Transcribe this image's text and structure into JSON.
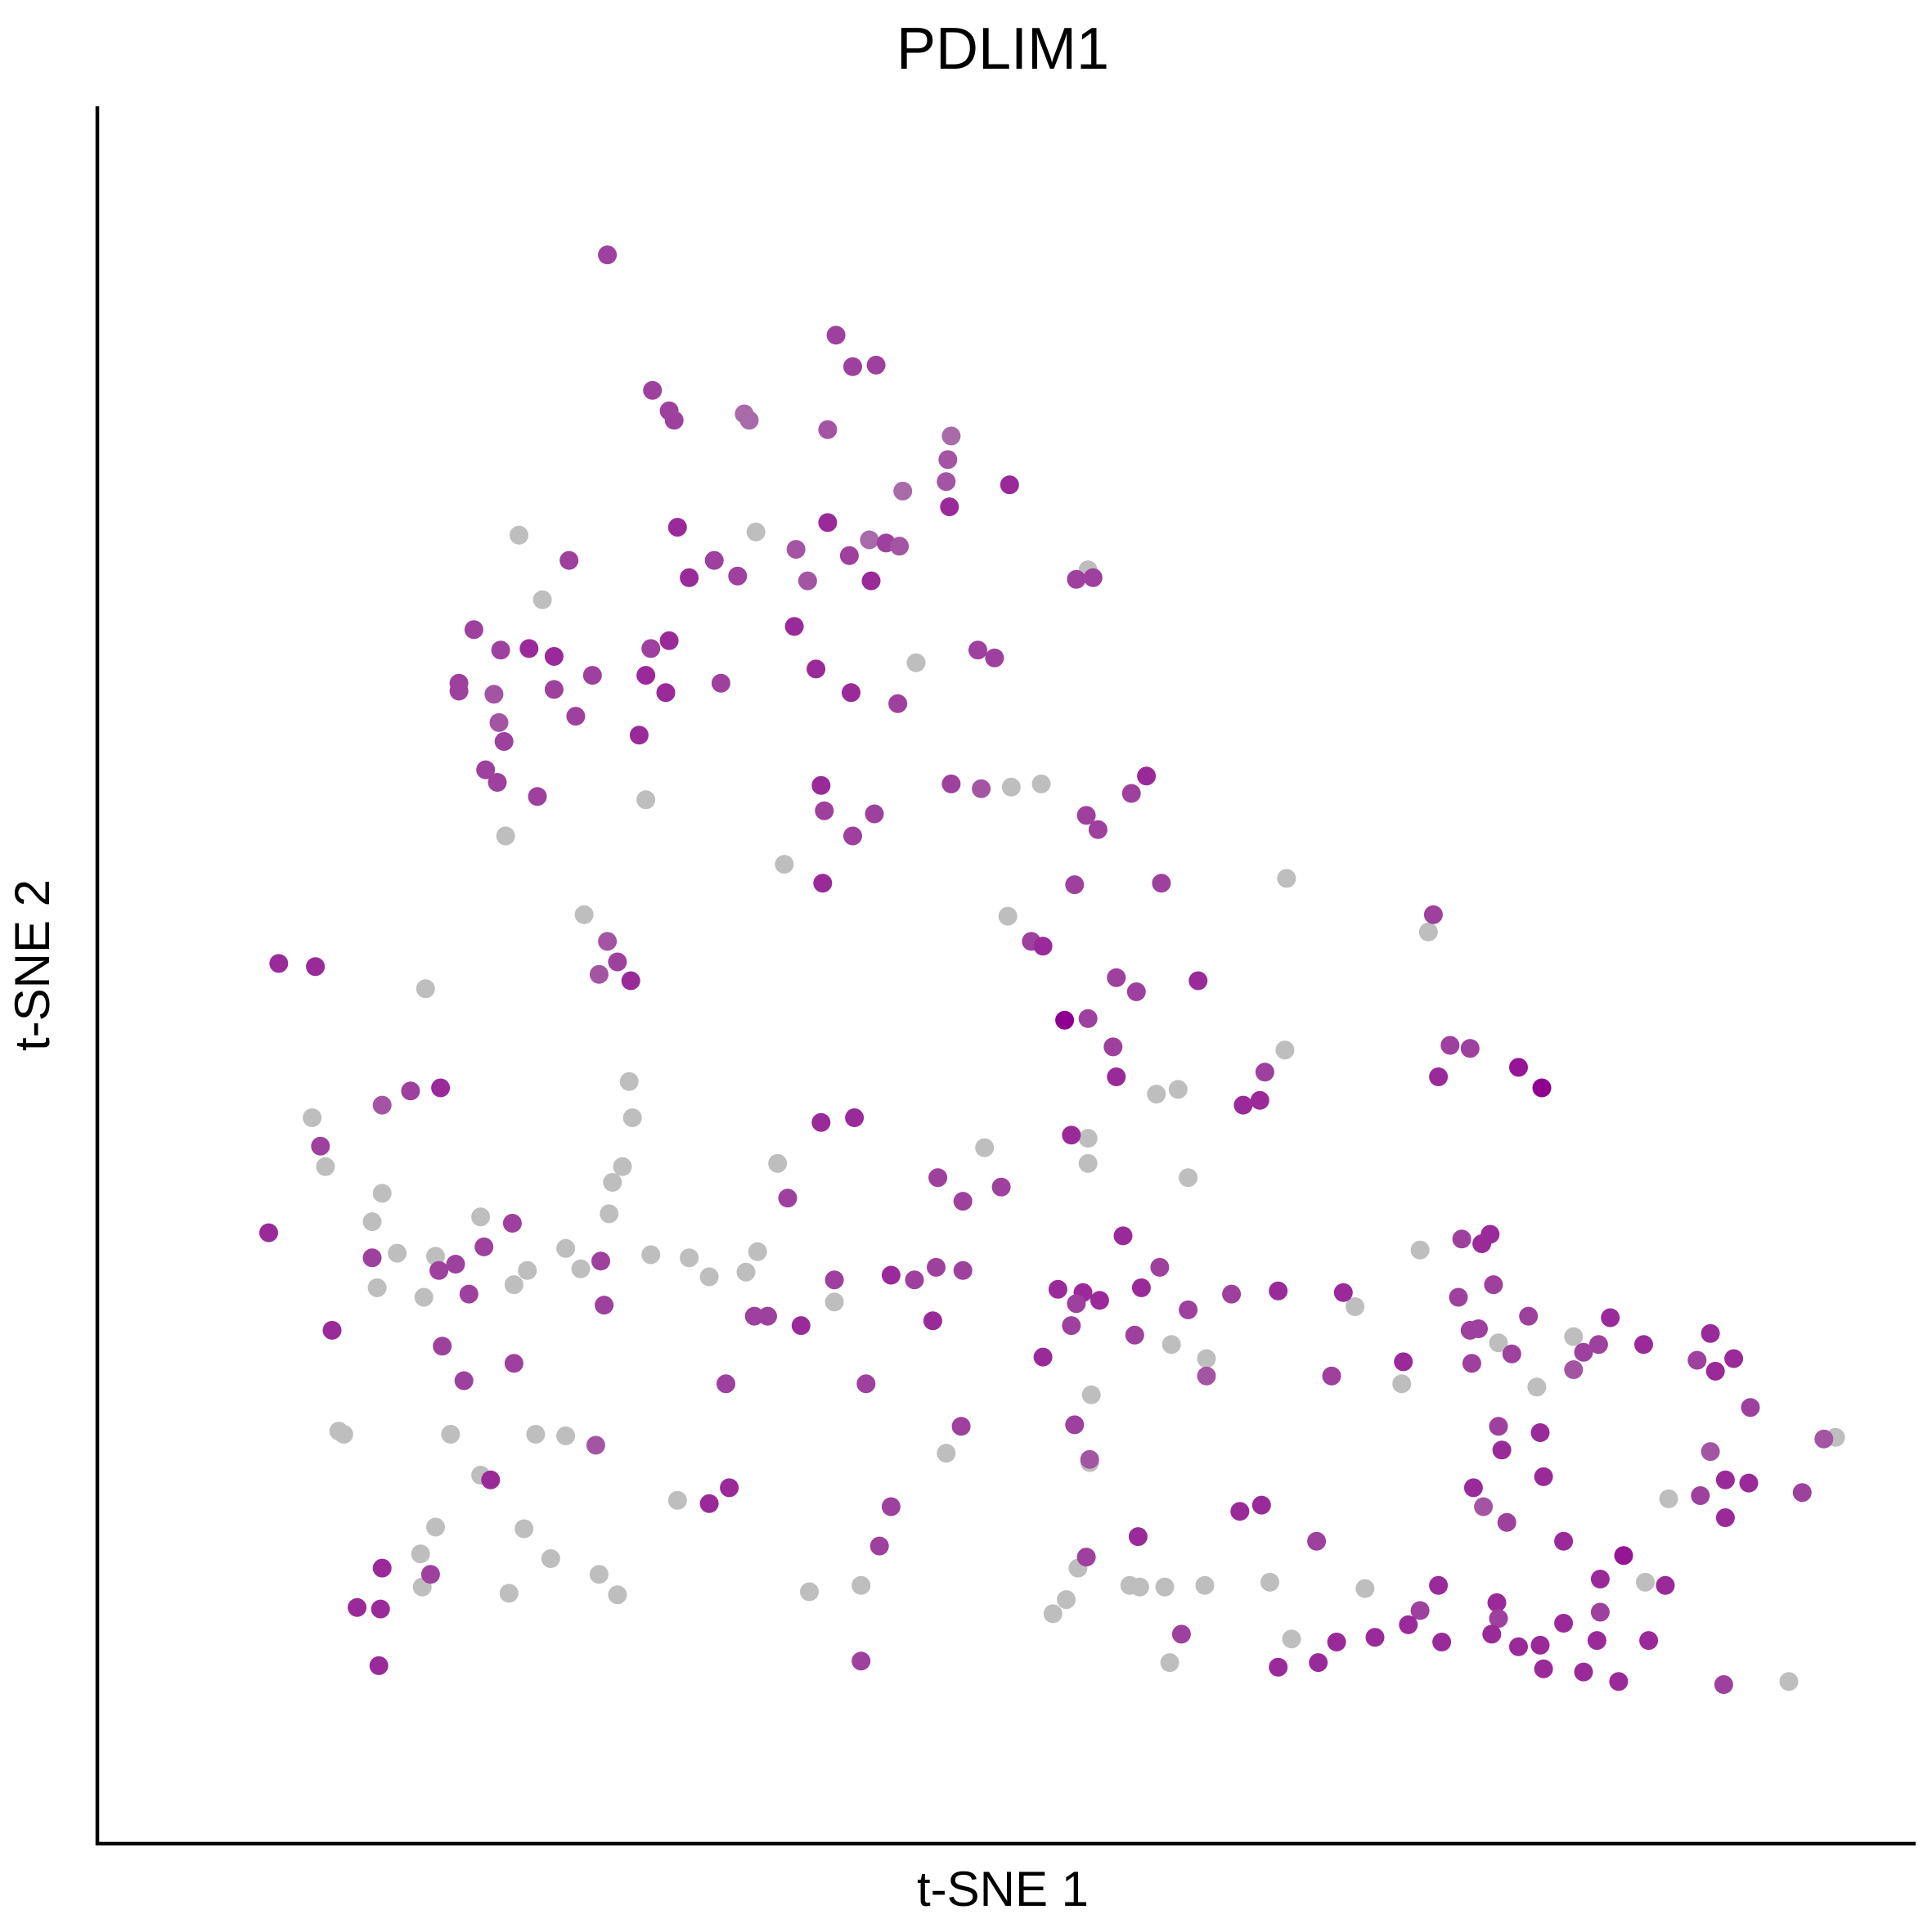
{
  "chart_data": {
    "type": "scatter",
    "title": "PDLIM1",
    "xlabel": "t-SNE 1",
    "ylabel": "t-SNE 2",
    "xlim": [
      0,
      100
    ],
    "ylim": [
      0,
      100
    ],
    "ticks": "none",
    "grid": false,
    "legend": "none",
    "colors": {
      "zero": "#bebebe",
      "low": "#a86aa8",
      "mid": "#9b43a0",
      "high": "#900090",
      "axis": "#000000"
    },
    "points": [
      [
        26.6,
        95.5,
        0.6
      ],
      [
        40.3,
        90.4,
        0.6
      ],
      [
        41.3,
        88.4,
        0.6
      ],
      [
        42.7,
        88.5,
        0.6
      ],
      [
        29.3,
        86.9,
        0.6
      ],
      [
        30.3,
        85.6,
        0.6
      ],
      [
        30.6,
        85.0,
        0.6
      ],
      [
        34.8,
        85.4,
        0.4
      ],
      [
        35.1,
        85.0,
        0.4
      ],
      [
        39.8,
        84.4,
        0.5
      ],
      [
        47.2,
        84.0,
        0.4
      ],
      [
        47.0,
        82.5,
        0.5
      ],
      [
        46.9,
        81.1,
        0.5
      ],
      [
        44.3,
        80.5,
        0.4
      ],
      [
        50.7,
        80.9,
        0.7
      ],
      [
        47.1,
        79.5,
        0.7
      ],
      [
        30.8,
        78.2,
        0.7
      ],
      [
        39.8,
        78.5,
        0.7
      ],
      [
        21.3,
        77.7,
        0
      ],
      [
        35.5,
        77.9,
        0
      ],
      [
        42.3,
        77.4,
        0.4
      ],
      [
        37.9,
        76.8,
        0.5
      ],
      [
        43.3,
        77.2,
        0.6
      ],
      [
        24.3,
        76.1,
        0.6
      ],
      [
        41.1,
        76.4,
        0.6
      ],
      [
        44.1,
        77.0,
        0.5
      ],
      [
        33.0,
        76.1,
        0.6
      ],
      [
        55.4,
        75.5,
        0
      ],
      [
        55.7,
        75.0,
        0.6
      ],
      [
        54.7,
        74.9,
        0.6
      ],
      [
        31.5,
        75.0,
        0.7
      ],
      [
        34.4,
        75.1,
        0.6
      ],
      [
        38.6,
        74.8,
        0.5
      ],
      [
        42.4,
        74.8,
        0.7
      ],
      [
        22.7,
        73.6,
        0
      ],
      [
        18.6,
        71.7,
        0.6
      ],
      [
        30.3,
        71.0,
        0.7
      ],
      [
        37.8,
        71.9,
        0.7
      ],
      [
        20.2,
        70.4,
        0.6
      ],
      [
        21.9,
        70.5,
        0.7
      ],
      [
        23.4,
        70.0,
        0.7
      ],
      [
        29.2,
        70.5,
        0.6
      ],
      [
        28.9,
        68.8,
        0.7
      ],
      [
        39.1,
        69.2,
        0.7
      ],
      [
        48.8,
        70.4,
        0.6
      ],
      [
        49.8,
        69.9,
        0.6
      ],
      [
        45.1,
        69.6,
        0
      ],
      [
        25.7,
        68.8,
        0.6
      ],
      [
        33.4,
        68.3,
        0.6
      ],
      [
        17.7,
        68.3,
        0.6
      ],
      [
        17.7,
        67.8,
        0.6
      ],
      [
        19.8,
        67.6,
        0.5
      ],
      [
        23.4,
        67.9,
        0.6
      ],
      [
        30.1,
        67.7,
        0.7
      ],
      [
        41.2,
        67.7,
        0.7
      ],
      [
        44.0,
        67.0,
        0.6
      ],
      [
        24.7,
        66.2,
        0.6
      ],
      [
        20.1,
        65.8,
        0.5
      ],
      [
        20.4,
        64.6,
        0.6
      ],
      [
        28.5,
        65.0,
        0.7
      ],
      [
        19.3,
        62.8,
        0.6
      ],
      [
        20.0,
        62.0,
        0.6
      ],
      [
        39.4,
        61.8,
        0.7
      ],
      [
        22.4,
        61.1,
        0.6
      ],
      [
        28.9,
        60.9,
        0
      ],
      [
        47.2,
        61.9,
        0.6
      ],
      [
        49.0,
        61.6,
        0.5
      ],
      [
        50.8,
        61.7,
        0
      ],
      [
        52.6,
        61.9,
        0
      ],
      [
        58.9,
        62.4,
        0.7
      ],
      [
        58.0,
        61.3,
        0.6
      ],
      [
        39.6,
        60.2,
        0.6
      ],
      [
        42.6,
        60.0,
        0.6
      ],
      [
        41.3,
        58.6,
        0.6
      ],
      [
        20.5,
        58.6,
        0
      ],
      [
        55.3,
        59.9,
        0.6
      ],
      [
        56.0,
        59.0,
        0.6
      ],
      [
        37.2,
        56.8,
        0
      ],
      [
        39.5,
        55.6,
        0.7
      ],
      [
        54.6,
        55.5,
        0.6
      ],
      [
        59.8,
        55.6,
        0.6
      ],
      [
        67.3,
        55.9,
        0
      ],
      [
        25.2,
        53.6,
        0
      ],
      [
        76.1,
        53.6,
        0.6
      ],
      [
        75.8,
        52.5,
        0
      ],
      [
        26.6,
        51.9,
        0.5
      ],
      [
        50.6,
        53.5,
        0
      ],
      [
        52.0,
        51.9,
        0.6
      ],
      [
        52.7,
        51.6,
        0.7
      ],
      [
        6.9,
        50.5,
        0.7
      ],
      [
        9.1,
        50.3,
        0.7
      ],
      [
        27.2,
        50.6,
        0.6
      ],
      [
        26.1,
        49.8,
        0.5
      ],
      [
        28.0,
        49.4,
        0.7
      ],
      [
        57.1,
        49.6,
        0.6
      ],
      [
        58.3,
        48.7,
        0.6
      ],
      [
        62.0,
        49.4,
        0.7
      ],
      [
        15.7,
        48.9,
        0
      ],
      [
        54.0,
        46.9,
        0.9
      ],
      [
        55.4,
        47.0,
        0.6
      ],
      [
        56.9,
        45.2,
        0.6
      ],
      [
        67.2,
        45.0,
        0
      ],
      [
        77.1,
        45.3,
        0.6
      ],
      [
        78.3,
        45.1,
        0.6
      ],
      [
        27.9,
        43.0,
        0
      ],
      [
        66.0,
        43.6,
        0.6
      ],
      [
        57.1,
        43.3,
        0.7
      ],
      [
        59.5,
        42.2,
        0
      ],
      [
        60.8,
        42.5,
        0
      ],
      [
        76.4,
        43.3,
        0.7
      ],
      [
        81.2,
        43.9,
        0.8
      ],
      [
        82.6,
        42.6,
        0.9
      ],
      [
        14.8,
        42.4,
        0.6
      ],
      [
        16.6,
        42.6,
        0.7
      ],
      [
        13.1,
        41.5,
        0.5
      ],
      [
        28.1,
        40.7,
        0
      ],
      [
        64.7,
        41.5,
        0.7
      ],
      [
        65.7,
        41.8,
        0.7
      ],
      [
        8.9,
        40.7,
        0
      ],
      [
        39.4,
        40.4,
        0.7
      ],
      [
        41.4,
        40.7,
        0.7
      ],
      [
        55.4,
        39.4,
        0
      ],
      [
        9.4,
        38.9,
        0.6
      ],
      [
        54.4,
        39.6,
        0.7
      ],
      [
        49.2,
        38.8,
        0
      ],
      [
        9.7,
        37.6,
        0
      ],
      [
        27.5,
        37.6,
        0
      ],
      [
        36.8,
        37.8,
        0
      ],
      [
        46.4,
        36.9,
        0.6
      ],
      [
        55.4,
        37.8,
        0
      ],
      [
        61.4,
        36.9,
        0
      ],
      [
        50.2,
        36.3,
        0.6
      ],
      [
        26.9,
        36.6,
        0
      ],
      [
        13.1,
        35.9,
        0
      ],
      [
        37.4,
        35.6,
        0.6
      ],
      [
        47.9,
        35.4,
        0.6
      ],
      [
        19.0,
        34.4,
        0
      ],
      [
        20.9,
        34.0,
        0.6
      ],
      [
        12.5,
        34.1,
        0
      ],
      [
        26.7,
        34.6,
        0
      ],
      [
        6.3,
        33.4,
        0.7
      ],
      [
        57.5,
        33.2,
        0.7
      ],
      [
        77.8,
        33.0,
        0.6
      ],
      [
        79.5,
        33.3,
        0.7
      ],
      [
        79.0,
        32.7,
        0.7
      ],
      [
        75.3,
        32.3,
        0
      ],
      [
        14.0,
        32.1,
        0
      ],
      [
        19.2,
        32.5,
        0.6
      ],
      [
        16.3,
        31.9,
        0
      ],
      [
        24.1,
        32.4,
        0
      ],
      [
        29.2,
        32.0,
        0
      ],
      [
        31.5,
        31.8,
        0
      ],
      [
        35.6,
        32.2,
        0
      ],
      [
        12.5,
        31.8,
        0.6
      ],
      [
        26.2,
        31.6,
        0.6
      ],
      [
        17.5,
        31.4,
        0.6
      ],
      [
        16.5,
        31.0,
        0.6
      ],
      [
        21.8,
        31.0,
        0
      ],
      [
        25.0,
        31.1,
        0
      ],
      [
        32.7,
        30.6,
        0
      ],
      [
        34.9,
        30.9,
        0
      ],
      [
        46.3,
        31.2,
        0.6
      ],
      [
        47.9,
        31.0,
        0.6
      ],
      [
        59.7,
        31.2,
        0.6
      ],
      [
        45.0,
        30.4,
        0.6
      ],
      [
        43.6,
        30.7,
        0.7
      ],
      [
        40.2,
        29.0,
        0
      ],
      [
        26.4,
        28.8,
        0.6
      ],
      [
        12.8,
        29.9,
        0
      ],
      [
        15.6,
        29.3,
        0
      ],
      [
        21.0,
        30.1,
        0
      ],
      [
        18.3,
        29.5,
        0.6
      ],
      [
        40.2,
        30.4,
        0.6
      ],
      [
        53.6,
        29.8,
        0.7
      ],
      [
        55.1,
        29.6,
        0.7
      ],
      [
        58.6,
        29.9,
        0.7
      ],
      [
        64.0,
        29.5,
        0.6
      ],
      [
        66.8,
        29.7,
        0.7
      ],
      [
        70.7,
        29.6,
        0.7
      ],
      [
        77.6,
        29.3,
        0.6
      ],
      [
        79.7,
        30.1,
        0.6
      ],
      [
        71.4,
        28.7,
        0
      ],
      [
        54.7,
        28.9,
        0.6
      ],
      [
        56.1,
        29.1,
        0.7
      ],
      [
        61.4,
        28.5,
        0.6
      ],
      [
        35.4,
        28.1,
        0.6
      ],
      [
        36.2,
        28.1,
        0.6
      ],
      [
        81.8,
        28.1,
        0.6
      ],
      [
        86.7,
        28.0,
        0.7
      ],
      [
        10.1,
        27.2,
        0.7
      ],
      [
        38.2,
        27.5,
        0.7
      ],
      [
        46.1,
        27.8,
        0.7
      ],
      [
        54.4,
        27.5,
        0.6
      ],
      [
        78.3,
        27.2,
        0.6
      ],
      [
        78.8,
        27.3,
        0.6
      ],
      [
        58.2,
        26.9,
        0.6
      ],
      [
        84.5,
        26.8,
        0
      ],
      [
        86.0,
        26.3,
        0.6
      ],
      [
        88.7,
        26.3,
        0.7
      ],
      [
        92.7,
        27.0,
        0.7
      ],
      [
        16.7,
        26.2,
        0.6
      ],
      [
        60.4,
        26.3,
        0
      ],
      [
        80.0,
        26.4,
        0
      ],
      [
        85.1,
        25.8,
        0.6
      ],
      [
        80.8,
        25.7,
        0.6
      ],
      [
        52.7,
        25.5,
        0.7
      ],
      [
        21.0,
        25.1,
        0.6
      ],
      [
        62.5,
        25.4,
        0
      ],
      [
        74.3,
        25.2,
        0.7
      ],
      [
        78.4,
        25.1,
        0.6
      ],
      [
        91.9,
        25.3,
        0.6
      ],
      [
        94.1,
        25.4,
        0.7
      ],
      [
        84.5,
        24.7,
        0.5
      ],
      [
        62.5,
        24.3,
        0.5
      ],
      [
        70.0,
        24.3,
        0.6
      ],
      [
        74.2,
        23.8,
        0
      ],
      [
        93.0,
        24.6,
        0.7
      ],
      [
        18.0,
        24.0,
        0.6
      ],
      [
        33.7,
        23.8,
        0.6
      ],
      [
        42.1,
        23.8,
        0.6
      ],
      [
        82.3,
        23.6,
        0
      ],
      [
        55.6,
        23.1,
        0
      ],
      [
        95.1,
        22.3,
        0.6
      ],
      [
        54.6,
        21.2,
        0.6
      ],
      [
        47.8,
        21.1,
        0.6
      ],
      [
        80.0,
        21.1,
        0.6
      ],
      [
        10.5,
        20.8,
        0
      ],
      [
        10.8,
        20.6,
        0
      ],
      [
        17.2,
        20.6,
        0
      ],
      [
        22.3,
        20.6,
        0
      ],
      [
        24.1,
        20.5,
        0
      ],
      [
        25.9,
        19.9,
        0.5
      ],
      [
        46.9,
        19.4,
        0
      ],
      [
        82.5,
        20.7,
        0.7
      ],
      [
        92.7,
        19.5,
        0.5
      ],
      [
        99.5,
        20.3,
        0.5
      ],
      [
        100.2,
        20.4,
        0
      ],
      [
        80.2,
        19.6,
        0.7
      ],
      [
        55.5,
        19.0,
        0.5
      ],
      [
        55.5,
        18.8,
        0
      ],
      [
        19.0,
        18.0,
        0
      ],
      [
        19.6,
        17.7,
        0.7
      ],
      [
        33.9,
        17.2,
        0.7
      ],
      [
        30.8,
        16.4,
        0
      ],
      [
        32.7,
        16.2,
        0.7
      ],
      [
        78.5,
        17.2,
        0.7
      ],
      [
        93.6,
        17.7,
        0.7
      ],
      [
        95.0,
        17.5,
        0.7
      ],
      [
        82.7,
        17.9,
        0.7
      ],
      [
        92.1,
        16.7,
        0.6
      ],
      [
        79.1,
        16.0,
        0.5
      ],
      [
        65.8,
        16.1,
        0.7
      ],
      [
        64.5,
        15.7,
        0.7
      ],
      [
        90.2,
        16.5,
        0
      ],
      [
        98.2,
        16.9,
        0.6
      ],
      [
        93.6,
        15.3,
        0.7
      ],
      [
        80.5,
        15.0,
        0.6
      ],
      [
        43.6,
        16.0,
        0.6
      ],
      [
        16.3,
        14.7,
        0
      ],
      [
        21.6,
        14.6,
        0
      ],
      [
        58.4,
        14.1,
        0.7
      ],
      [
        42.9,
        13.5,
        0.6
      ],
      [
        83.9,
        13.8,
        0.7
      ],
      [
        15.4,
        13.0,
        0
      ],
      [
        23.2,
        12.7,
        0
      ],
      [
        55.3,
        12.8,
        0.6
      ],
      [
        69.1,
        13.8,
        0.6
      ],
      [
        87.5,
        12.9,
        0.8
      ],
      [
        13.1,
        12.1,
        0.7
      ],
      [
        16.0,
        11.7,
        0.6
      ],
      [
        26.1,
        11.7,
        0
      ],
      [
        54.8,
        12.1,
        0
      ],
      [
        57.9,
        11.0,
        0
      ],
      [
        58.5,
        10.9,
        0
      ],
      [
        60.0,
        10.9,
        0
      ],
      [
        15.5,
        10.9,
        0
      ],
      [
        20.7,
        10.5,
        0
      ],
      [
        27.2,
        10.4,
        0
      ],
      [
        38.7,
        10.6,
        0
      ],
      [
        41.8,
        11.0,
        0
      ],
      [
        62.4,
        11.0,
        0
      ],
      [
        66.3,
        11.2,
        0
      ],
      [
        86.1,
        11.4,
        0.7
      ],
      [
        88.8,
        11.2,
        0
      ],
      [
        90.0,
        11.0,
        0.7
      ],
      [
        72.0,
        10.8,
        0
      ],
      [
        76.4,
        11.0,
        0.7
      ],
      [
        75.3,
        9.4,
        0.6
      ],
      [
        79.9,
        9.9,
        0.7
      ],
      [
        80.0,
        8.9,
        0.6
      ],
      [
        11.6,
        9.6,
        0.7
      ],
      [
        13.0,
        9.5,
        0.7
      ],
      [
        54.1,
        10.1,
        0
      ],
      [
        53.3,
        9.2,
        0
      ],
      [
        86.1,
        9.3,
        0.6
      ],
      [
        83.9,
        8.6,
        0.7
      ],
      [
        79.6,
        7.9,
        0.7
      ],
      [
        82.5,
        7.2,
        0.7
      ],
      [
        85.9,
        7.5,
        0.7
      ],
      [
        74.6,
        8.5,
        0.7
      ],
      [
        76.6,
        7.4,
        0.7
      ],
      [
        89.0,
        7.5,
        0.7
      ],
      [
        67.6,
        7.6,
        0
      ],
      [
        61.0,
        7.9,
        0.6
      ],
      [
        70.3,
        7.4,
        0.7
      ],
      [
        72.6,
        7.7,
        0.7
      ],
      [
        81.2,
        7.1,
        0.7
      ],
      [
        12.9,
        5.9,
        0.7
      ],
      [
        41.8,
        6.2,
        0.6
      ],
      [
        60.3,
        6.1,
        0
      ],
      [
        66.8,
        5.8,
        0.7
      ],
      [
        69.2,
        6.1,
        0.7
      ],
      [
        82.7,
        5.7,
        0.7
      ],
      [
        85.1,
        5.5,
        0.7
      ],
      [
        87.2,
        4.9,
        0.7
      ],
      [
        97.4,
        4.9,
        0
      ],
      [
        93.5,
        4.7,
        0.6
      ]
    ]
  }
}
